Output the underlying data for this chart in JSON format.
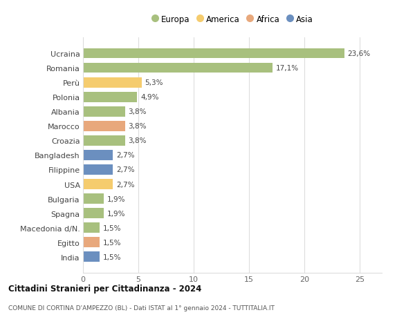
{
  "categories": [
    "Ucraina",
    "Romania",
    "Perù",
    "Polonia",
    "Albania",
    "Marocco",
    "Croazia",
    "Bangladesh",
    "Filippine",
    "USA",
    "Bulgaria",
    "Spagna",
    "Macedonia d/N.",
    "Egitto",
    "India"
  ],
  "values": [
    23.6,
    17.1,
    5.3,
    4.9,
    3.8,
    3.8,
    3.8,
    2.7,
    2.7,
    2.7,
    1.9,
    1.9,
    1.5,
    1.5,
    1.5
  ],
  "labels": [
    "23,6%",
    "17,1%",
    "5,3%",
    "4,9%",
    "3,8%",
    "3,8%",
    "3,8%",
    "2,7%",
    "2,7%",
    "2,7%",
    "1,9%",
    "1,9%",
    "1,5%",
    "1,5%",
    "1,5%"
  ],
  "continents": [
    "Europa",
    "Europa",
    "America",
    "Europa",
    "Europa",
    "Africa",
    "Europa",
    "Asia",
    "Asia",
    "America",
    "Europa",
    "Europa",
    "Europa",
    "Africa",
    "Asia"
  ],
  "colors": {
    "Europa": "#a8c07e",
    "America": "#f5cc6e",
    "Africa": "#e8a87c",
    "Asia": "#6b8fbf"
  },
  "legend_order": [
    "Europa",
    "America",
    "Africa",
    "Asia"
  ],
  "title1": "Cittadini Stranieri per Cittadinanza - 2024",
  "title2": "COMUNE DI CORTINA D'AMPEZZO (BL) - Dati ISTAT al 1° gennaio 2024 - TUTTITALIA.IT",
  "xlim": [
    0,
    27
  ],
  "xticks": [
    0,
    5,
    10,
    15,
    20,
    25
  ],
  "background_color": "#ffffff",
  "grid_color": "#dddddd",
  "bar_height": 0.7
}
